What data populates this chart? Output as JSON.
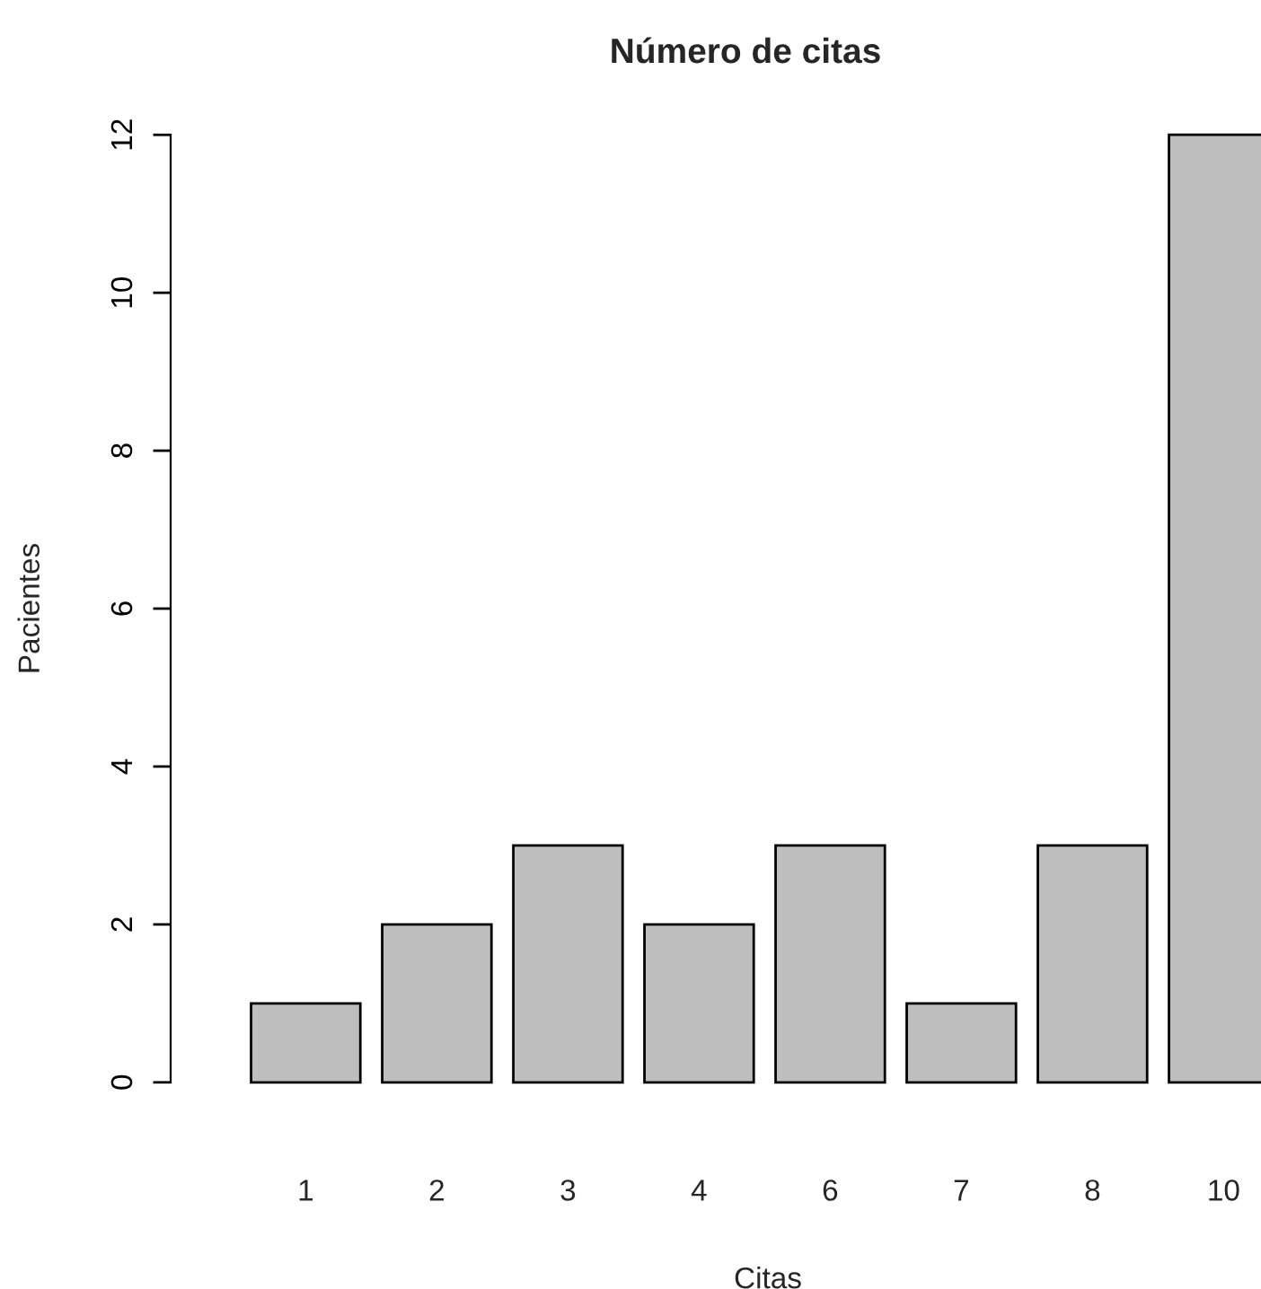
{
  "chart_data": {
    "type": "bar",
    "title": "Número de citas",
    "xlabel": "Citas",
    "ylabel": "Pacientes",
    "categories": [
      "1",
      "2",
      "3",
      "4",
      "6",
      "7",
      "8",
      "10"
    ],
    "values": [
      1,
      2,
      3,
      2,
      3,
      1,
      3,
      12
    ],
    "color": "#bebebe",
    "ylim": [
      0,
      12
    ],
    "yticks": [
      0,
      2,
      4,
      6,
      8,
      10,
      12
    ],
    "grid": false
  }
}
